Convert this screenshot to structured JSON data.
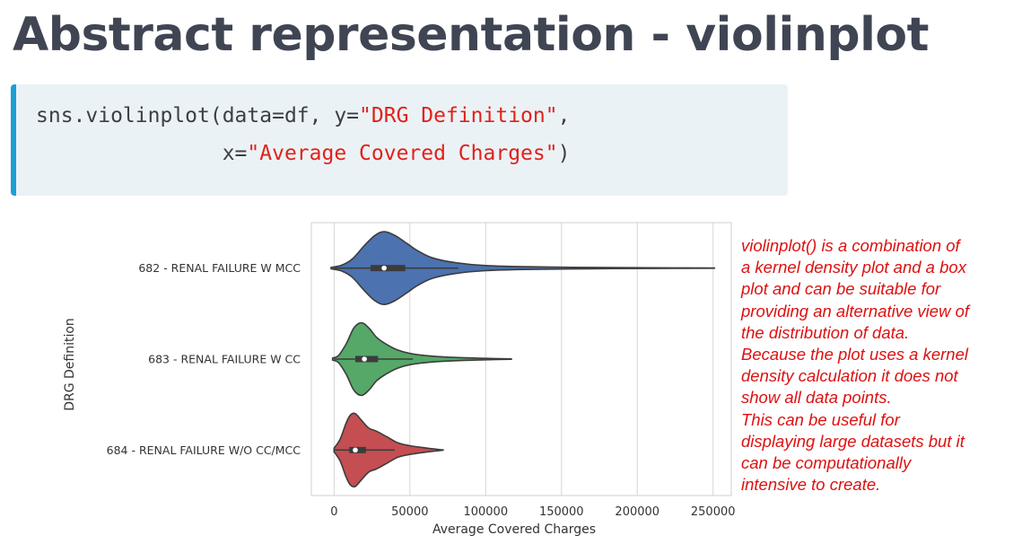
{
  "slide": {
    "title": "Abstract representation - violinplot"
  },
  "code": {
    "line1_prefix": "sns.violinplot(data=df, y=",
    "line1_string": "\"DRG Definition\"",
    "line1_suffix": ",",
    "line2_prefix": "               x=",
    "line2_string": "\"Average Covered Charges\"",
    "line2_suffix": ")"
  },
  "note": {
    "lines": [
      "violinplot() is a combination of",
      "a kernel density plot and a box",
      "plot and can be suitable for",
      "providing an alternative view of",
      "the distribution of data.",
      "Because the plot uses a kernel",
      "density calculation it does not",
      "show all data points.",
      "This can be useful for",
      "displaying large datasets but it",
      "can be computationally",
      "intensive to create."
    ]
  },
  "chart_data": {
    "type": "violin",
    "orientation": "horizontal",
    "xlabel": "Average Covered Charges",
    "ylabel": "DRG Definition",
    "xlim": [
      -15000,
      262000
    ],
    "xticks": [
      0,
      50000,
      100000,
      150000,
      200000,
      250000
    ],
    "grid": "x",
    "categories": [
      "682 - RENAL FAILURE W MCC",
      "683 - RENAL FAILURE W CC",
      "684 - RENAL FAILURE W/O CC/MCC"
    ],
    "colors": [
      "#4c72b0",
      "#55a868",
      "#c44e52"
    ],
    "series": [
      {
        "category": "682 - RENAL FAILURE W MCC",
        "min": -2000,
        "max": 251000,
        "q1": 24000,
        "median": 33000,
        "q3": 47000,
        "whisker_low": 0,
        "whisker_high": 82000,
        "density": [
          [
            -2000,
            0.02
          ],
          [
            5000,
            0.08
          ],
          [
            12000,
            0.25
          ],
          [
            20000,
            0.62
          ],
          [
            27000,
            0.9
          ],
          [
            33000,
            1.0
          ],
          [
            40000,
            0.9
          ],
          [
            48000,
            0.68
          ],
          [
            55000,
            0.48
          ],
          [
            65000,
            0.28
          ],
          [
            80000,
            0.15
          ],
          [
            100000,
            0.07
          ],
          [
            130000,
            0.035
          ],
          [
            170000,
            0.018
          ],
          [
            210000,
            0.01
          ],
          [
            251000,
            0.003
          ]
        ]
      },
      {
        "category": "683 - RENAL FAILURE W CC",
        "min": -1000,
        "max": 117000,
        "q1": 14000,
        "median": 20000,
        "q3": 29000,
        "whisker_low": 0,
        "whisker_high": 52000,
        "density": [
          [
            -1000,
            0.03
          ],
          [
            3000,
            0.1
          ],
          [
            8000,
            0.42
          ],
          [
            13000,
            0.85
          ],
          [
            18000,
            1.0
          ],
          [
            23000,
            0.85
          ],
          [
            28000,
            0.6
          ],
          [
            34000,
            0.42
          ],
          [
            42000,
            0.25
          ],
          [
            52000,
            0.14
          ],
          [
            65000,
            0.08
          ],
          [
            80000,
            0.045
          ],
          [
            100000,
            0.02
          ],
          [
            117000,
            0.004
          ]
        ]
      },
      {
        "category": "684 - RENAL FAILURE W/O CC/MCC",
        "min": 0,
        "max": 72000,
        "q1": 10000,
        "median": 14000,
        "q3": 21000,
        "whisker_low": 0,
        "whisker_high": 40000,
        "density": [
          [
            0,
            0.05
          ],
          [
            4000,
            0.3
          ],
          [
            8000,
            0.75
          ],
          [
            11000,
            0.97
          ],
          [
            14000,
            1.0
          ],
          [
            18000,
            0.82
          ],
          [
            23000,
            0.6
          ],
          [
            28000,
            0.52
          ],
          [
            35000,
            0.36
          ],
          [
            42000,
            0.2
          ],
          [
            50000,
            0.12
          ],
          [
            60000,
            0.06
          ],
          [
            72000,
            0.004
          ]
        ]
      }
    ]
  }
}
